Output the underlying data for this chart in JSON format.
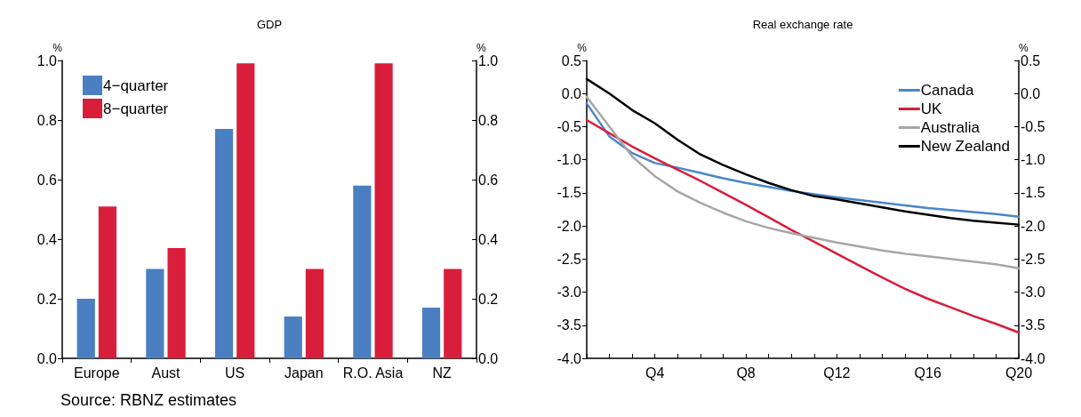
{
  "chart_data": [
    {
      "type": "bar",
      "title": "GDP",
      "ylabel": "%",
      "y2label": "%",
      "categories": [
        "Europe",
        "Aust",
        "US",
        "Japan",
        "R.O. Asia",
        "NZ"
      ],
      "series": [
        {
          "name": "4−quarter",
          "color": "#4a7fc1",
          "values": [
            0.2,
            0.3,
            0.77,
            0.14,
            0.58,
            0.17
          ]
        },
        {
          "name": "8−quarter",
          "color": "#d81e3a",
          "values": [
            0.51,
            0.37,
            0.99,
            0.3,
            0.99,
            0.3
          ]
        }
      ],
      "ylim": [
        0,
        1
      ],
      "yticks": [
        {
          "value": 0,
          "label": "0.0"
        },
        0.2,
        0.4,
        0.6,
        0.8,
        {
          "value": 1,
          "label": "1.0"
        }
      ],
      "y2lim": [
        0,
        1
      ],
      "y2ticks": [
        {
          "value": 0,
          "label": "0.0"
        },
        0.2,
        0.4,
        0.6,
        0.8,
        {
          "value": 1,
          "label": "1.0"
        }
      ],
      "grid": false,
      "legend": "top left",
      "annotations": [
        "Source: RBNZ estimates"
      ]
    },
    {
      "type": "line",
      "title": "Real exchange rate",
      "ylabel": "%",
      "y2label": "%",
      "categories": [
        null,
        null,
        null,
        "Q4",
        null,
        null,
        null,
        "Q8",
        null,
        null,
        null,
        "Q12",
        null,
        null,
        null,
        "Q16",
        null,
        null,
        null,
        "Q20"
      ],
      "series": [
        {
          "name": "Canada",
          "color": "#4a86c8",
          "values": [
            -0.15,
            -0.65,
            -0.9,
            -1.05,
            -1.12,
            -1.2,
            -1.28,
            -1.35,
            -1.41,
            -1.47,
            -1.52,
            -1.57,
            -1.61,
            -1.65,
            -1.69,
            -1.73,
            -1.76,
            -1.79,
            -1.82,
            -1.86
          ]
        },
        {
          "name": "UK",
          "color": "#d81e3a",
          "values": [
            -0.4,
            -0.6,
            -0.8,
            -0.98,
            -1.15,
            -1.32,
            -1.5,
            -1.68,
            -1.87,
            -2.06,
            -2.24,
            -2.42,
            -2.6,
            -2.78,
            -2.95,
            -3.1,
            -3.23,
            -3.36,
            -3.48,
            -3.61
          ]
        },
        {
          "name": "Australia",
          "color": "#a6a6a6",
          "values": [
            -0.05,
            -0.5,
            -0.95,
            -1.25,
            -1.48,
            -1.65,
            -1.8,
            -1.93,
            -2.03,
            -2.11,
            -2.18,
            -2.25,
            -2.31,
            -2.37,
            -2.42,
            -2.46,
            -2.5,
            -2.54,
            -2.58,
            -2.64
          ]
        },
        {
          "name": "New Zealand",
          "color": "#000000",
          "values": [
            0.22,
            0.0,
            -0.25,
            -0.45,
            -0.7,
            -0.92,
            -1.08,
            -1.22,
            -1.35,
            -1.46,
            -1.55,
            -1.6,
            -1.66,
            -1.72,
            -1.78,
            -1.83,
            -1.88,
            -1.92,
            -1.95,
            -1.98
          ]
        }
      ],
      "ylim": [
        -4,
        0.5
      ],
      "yticks": [
        {
          "value": -4,
          "label": "-4.0"
        },
        -3.5,
        {
          "value": -3,
          "label": "-3.0"
        },
        -2.5,
        {
          "value": -2,
          "label": "-2.0"
        },
        -1.5,
        {
          "value": -1,
          "label": "-1.0"
        },
        -0.5,
        {
          "value": 0,
          "label": "0.0"
        },
        0.5
      ],
      "y2lim": [
        -4,
        0.5
      ],
      "y2ticks": [
        {
          "value": -4,
          "label": "-4.0"
        },
        -3.5,
        {
          "value": -3,
          "label": "-3.0"
        },
        -2.5,
        {
          "value": -2,
          "label": "-2.0"
        },
        -1.5,
        {
          "value": -1,
          "label": "-1.0"
        },
        -0.5,
        {
          "value": 0,
          "label": "0.0"
        },
        0.5
      ],
      "grid": false,
      "legend": "top right",
      "marker": "none",
      "line_style": "solid"
    }
  ]
}
